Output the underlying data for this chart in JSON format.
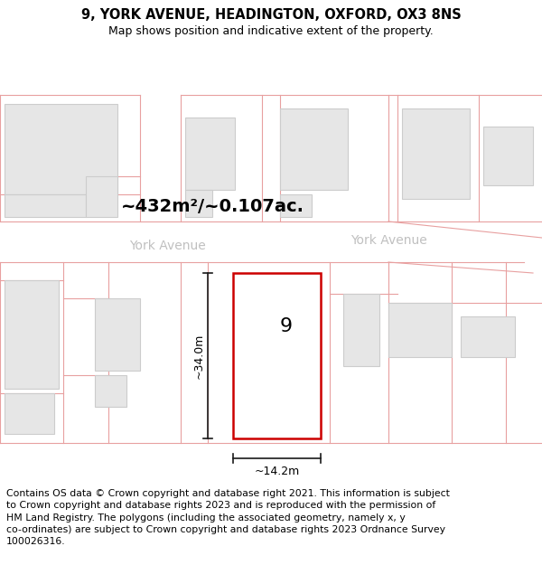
{
  "title": "9, YORK AVENUE, HEADINGTON, OXFORD, OX3 8NS",
  "subtitle": "Map shows position and indicative extent of the property.",
  "footer": "Contains OS data © Crown copyright and database right 2021. This information is subject\nto Crown copyright and database rights 2023 and is reproduced with the permission of\nHM Land Registry. The polygons (including the associated geometry, namely x, y\nco-ordinates) are subject to Crown copyright and database rights 2023 Ordnance Survey\n100026316.",
  "area_label": "~432m²/~0.107ac.",
  "street_label": "York Avenue",
  "dim_height": "~34.0m",
  "dim_width": "~14.2m",
  "property_number": "9",
  "bg_color": "#ffffff",
  "map_bg": "#ffffff",
  "building_fill": "#e6e6e6",
  "building_edge": "#cccccc",
  "plot_line_color": "#e8a0a0",
  "property_edge": "#cc0000",
  "property_fill": "#ffffff",
  "dim_line_color": "#1a1a1a",
  "street_label_color": "#c0c0c0",
  "title_fontsize": 10.5,
  "subtitle_fontsize": 9,
  "footer_fontsize": 7.8,
  "area_label_fontsize": 14,
  "street_label_fontsize": 10,
  "prop_number_fontsize": 16,
  "dim_fontsize": 9
}
